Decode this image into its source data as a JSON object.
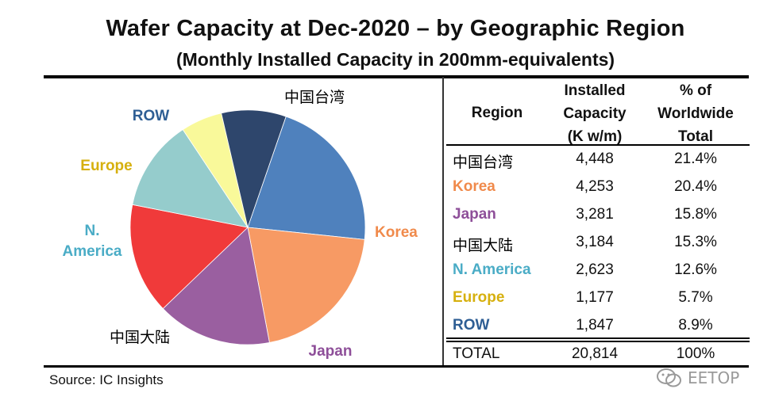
{
  "chart_data": {
    "type": "pie",
    "title": "Wafer Capacity at Dec-2020 – by Geographic Region",
    "subtitle": "(Monthly Installed Capacity in 200mm-equivalents)",
    "slices": [
      {
        "label": "中国台湾",
        "value": 21.4,
        "color": "#4f81bd",
        "text_color": "#000000"
      },
      {
        "label": "Korea",
        "value": 20.4,
        "color": "#f79a64",
        "text_color": "#f08a4b"
      },
      {
        "label": "Japan",
        "value": 15.8,
        "color": "#9a5fa0",
        "text_color": "#8e4f99"
      },
      {
        "label": "中国大陆",
        "value": 15.3,
        "color": "#f03a3a",
        "text_color": "#000000"
      },
      {
        "label": "N. America",
        "value": 12.6,
        "color": "#95cccc",
        "text_color": "#4aacc6"
      },
      {
        "label": "Europe",
        "value": 5.7,
        "color": "#f9f99a",
        "text_color": "#d6b00e"
      },
      {
        "label": "ROW",
        "value": 8.9,
        "color": "#2e466c",
        "text_color": "#2e5e94"
      }
    ]
  },
  "table": {
    "headers": {
      "region": "Region",
      "capacity": [
        "Installed",
        "Capacity",
        "(K w/m)"
      ],
      "percent": [
        "% of",
        "Worldwide",
        "Total"
      ]
    },
    "rows": [
      {
        "region": "中国台湾",
        "capacity": "4,448",
        "percent": "21.4%",
        "color": "#000000"
      },
      {
        "region": "Korea",
        "capacity": "4,253",
        "percent": "20.4%",
        "color": "#f08a4b"
      },
      {
        "region": "Japan",
        "capacity": "3,281",
        "percent": "15.8%",
        "color": "#8e4f99"
      },
      {
        "region": "中国大陆",
        "capacity": "3,184",
        "percent": "15.3%",
        "color": "#000000"
      },
      {
        "region": "N. America",
        "capacity": "2,623",
        "percent": "12.6%",
        "color": "#4aacc6"
      },
      {
        "region": "Europe",
        "capacity": "1,177",
        "percent": "5.7%",
        "color": "#d6b00e"
      },
      {
        "region": "ROW",
        "capacity": "1,847",
        "percent": "8.9%",
        "color": "#2e5e94"
      }
    ],
    "total": {
      "region": "TOTAL",
      "capacity": "20,814",
      "percent": "100%"
    }
  },
  "source": "Source:  IC Insights",
  "watermark": "EETOP"
}
